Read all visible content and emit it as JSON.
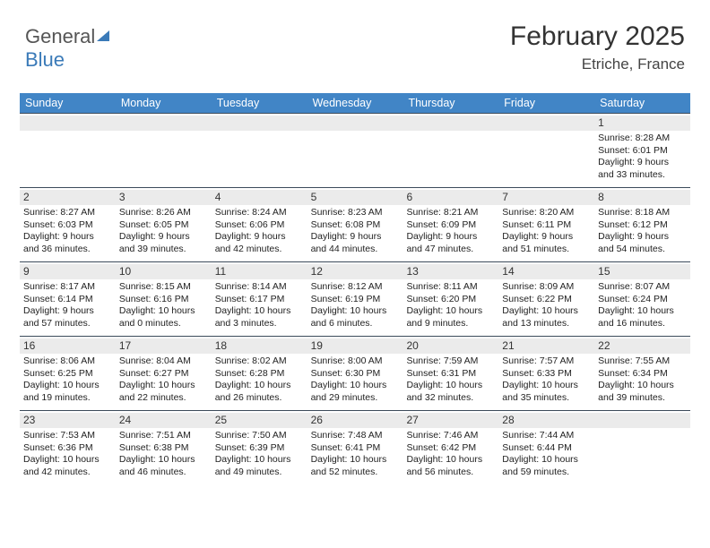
{
  "logo": {
    "part1": "General",
    "part2": "Blue"
  },
  "header": {
    "month": "February 2025",
    "location": "Etriche, France"
  },
  "colors": {
    "header_bar": "#4185c6",
    "header_text": "#ffffff",
    "num_bg": "#ebebeb",
    "rule": "#3b4a5a"
  },
  "dow": [
    "Sunday",
    "Monday",
    "Tuesday",
    "Wednesday",
    "Thursday",
    "Friday",
    "Saturday"
  ],
  "weeks": [
    [
      {
        "n": "",
        "sr": "",
        "ss": "",
        "dl": ""
      },
      {
        "n": "",
        "sr": "",
        "ss": "",
        "dl": ""
      },
      {
        "n": "",
        "sr": "",
        "ss": "",
        "dl": ""
      },
      {
        "n": "",
        "sr": "",
        "ss": "",
        "dl": ""
      },
      {
        "n": "",
        "sr": "",
        "ss": "",
        "dl": ""
      },
      {
        "n": "",
        "sr": "",
        "ss": "",
        "dl": ""
      },
      {
        "n": "1",
        "sr": "Sunrise: 8:28 AM",
        "ss": "Sunset: 6:01 PM",
        "dl": "Daylight: 9 hours and 33 minutes."
      }
    ],
    [
      {
        "n": "2",
        "sr": "Sunrise: 8:27 AM",
        "ss": "Sunset: 6:03 PM",
        "dl": "Daylight: 9 hours and 36 minutes."
      },
      {
        "n": "3",
        "sr": "Sunrise: 8:26 AM",
        "ss": "Sunset: 6:05 PM",
        "dl": "Daylight: 9 hours and 39 minutes."
      },
      {
        "n": "4",
        "sr": "Sunrise: 8:24 AM",
        "ss": "Sunset: 6:06 PM",
        "dl": "Daylight: 9 hours and 42 minutes."
      },
      {
        "n": "5",
        "sr": "Sunrise: 8:23 AM",
        "ss": "Sunset: 6:08 PM",
        "dl": "Daylight: 9 hours and 44 minutes."
      },
      {
        "n": "6",
        "sr": "Sunrise: 8:21 AM",
        "ss": "Sunset: 6:09 PM",
        "dl": "Daylight: 9 hours and 47 minutes."
      },
      {
        "n": "7",
        "sr": "Sunrise: 8:20 AM",
        "ss": "Sunset: 6:11 PM",
        "dl": "Daylight: 9 hours and 51 minutes."
      },
      {
        "n": "8",
        "sr": "Sunrise: 8:18 AM",
        "ss": "Sunset: 6:12 PM",
        "dl": "Daylight: 9 hours and 54 minutes."
      }
    ],
    [
      {
        "n": "9",
        "sr": "Sunrise: 8:17 AM",
        "ss": "Sunset: 6:14 PM",
        "dl": "Daylight: 9 hours and 57 minutes."
      },
      {
        "n": "10",
        "sr": "Sunrise: 8:15 AM",
        "ss": "Sunset: 6:16 PM",
        "dl": "Daylight: 10 hours and 0 minutes."
      },
      {
        "n": "11",
        "sr": "Sunrise: 8:14 AM",
        "ss": "Sunset: 6:17 PM",
        "dl": "Daylight: 10 hours and 3 minutes."
      },
      {
        "n": "12",
        "sr": "Sunrise: 8:12 AM",
        "ss": "Sunset: 6:19 PM",
        "dl": "Daylight: 10 hours and 6 minutes."
      },
      {
        "n": "13",
        "sr": "Sunrise: 8:11 AM",
        "ss": "Sunset: 6:20 PM",
        "dl": "Daylight: 10 hours and 9 minutes."
      },
      {
        "n": "14",
        "sr": "Sunrise: 8:09 AM",
        "ss": "Sunset: 6:22 PM",
        "dl": "Daylight: 10 hours and 13 minutes."
      },
      {
        "n": "15",
        "sr": "Sunrise: 8:07 AM",
        "ss": "Sunset: 6:24 PM",
        "dl": "Daylight: 10 hours and 16 minutes."
      }
    ],
    [
      {
        "n": "16",
        "sr": "Sunrise: 8:06 AM",
        "ss": "Sunset: 6:25 PM",
        "dl": "Daylight: 10 hours and 19 minutes."
      },
      {
        "n": "17",
        "sr": "Sunrise: 8:04 AM",
        "ss": "Sunset: 6:27 PM",
        "dl": "Daylight: 10 hours and 22 minutes."
      },
      {
        "n": "18",
        "sr": "Sunrise: 8:02 AM",
        "ss": "Sunset: 6:28 PM",
        "dl": "Daylight: 10 hours and 26 minutes."
      },
      {
        "n": "19",
        "sr": "Sunrise: 8:00 AM",
        "ss": "Sunset: 6:30 PM",
        "dl": "Daylight: 10 hours and 29 minutes."
      },
      {
        "n": "20",
        "sr": "Sunrise: 7:59 AM",
        "ss": "Sunset: 6:31 PM",
        "dl": "Daylight: 10 hours and 32 minutes."
      },
      {
        "n": "21",
        "sr": "Sunrise: 7:57 AM",
        "ss": "Sunset: 6:33 PM",
        "dl": "Daylight: 10 hours and 35 minutes."
      },
      {
        "n": "22",
        "sr": "Sunrise: 7:55 AM",
        "ss": "Sunset: 6:34 PM",
        "dl": "Daylight: 10 hours and 39 minutes."
      }
    ],
    [
      {
        "n": "23",
        "sr": "Sunrise: 7:53 AM",
        "ss": "Sunset: 6:36 PM",
        "dl": "Daylight: 10 hours and 42 minutes."
      },
      {
        "n": "24",
        "sr": "Sunrise: 7:51 AM",
        "ss": "Sunset: 6:38 PM",
        "dl": "Daylight: 10 hours and 46 minutes."
      },
      {
        "n": "25",
        "sr": "Sunrise: 7:50 AM",
        "ss": "Sunset: 6:39 PM",
        "dl": "Daylight: 10 hours and 49 minutes."
      },
      {
        "n": "26",
        "sr": "Sunrise: 7:48 AM",
        "ss": "Sunset: 6:41 PM",
        "dl": "Daylight: 10 hours and 52 minutes."
      },
      {
        "n": "27",
        "sr": "Sunrise: 7:46 AM",
        "ss": "Sunset: 6:42 PM",
        "dl": "Daylight: 10 hours and 56 minutes."
      },
      {
        "n": "28",
        "sr": "Sunrise: 7:44 AM",
        "ss": "Sunset: 6:44 PM",
        "dl": "Daylight: 10 hours and 59 minutes."
      },
      {
        "n": "",
        "sr": "",
        "ss": "",
        "dl": ""
      }
    ]
  ]
}
